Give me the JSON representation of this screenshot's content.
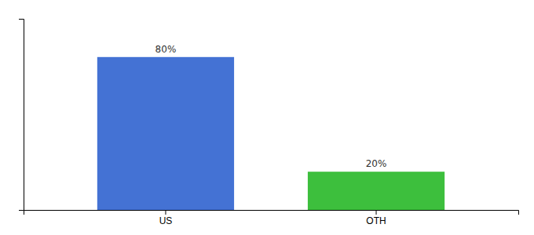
{
  "chart_data": {
    "type": "bar",
    "categories": [
      "US",
      "OTH"
    ],
    "values": [
      80,
      20
    ],
    "value_labels": [
      "80%",
      "20%"
    ],
    "colors": [
      "#4472D4",
      "#3DBF3D"
    ],
    "ylim": [
      0,
      100
    ],
    "data_labels": true,
    "tick_labels": "x",
    "grid": false
  }
}
